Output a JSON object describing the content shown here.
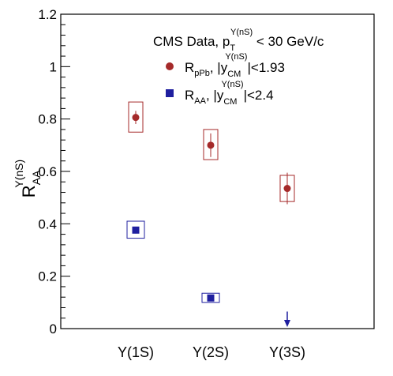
{
  "chart_data": {
    "type": "scatter",
    "title": "CMS Data, p_T^{Υ(nS)} < 30 GeV/c",
    "title_parts": {
      "prefix": "CMS Data, p",
      "sub": "T",
      "sup": "Υ(nS)",
      "suffix": " < 30 GeV/c"
    },
    "ylabel": "R_AA^Υ(nS)",
    "ylabel_parts": {
      "base": "R",
      "sub": "AA",
      "sup": "Υ(nS)"
    },
    "xlabel": "",
    "categories": [
      "Υ(1S)",
      "Υ(2S)",
      "Υ(3S)"
    ],
    "ylim": [
      0,
      1.2
    ],
    "yticks": [
      "0",
      "0.2",
      "0.4",
      "0.6",
      "0.8",
      "1",
      "1.2"
    ],
    "grid": false,
    "legend_position": "top-right",
    "series": [
      {
        "name": "R_pPb, |y_CM^Υ(nS)|<1.93",
        "legend_parts": {
          "a": "R",
          "a_sub": "pPb",
          "b": ", |y",
          "b_sub": "CM",
          "b_sup": "Υ(nS)",
          "c": "|<1.93"
        },
        "marker": "circle",
        "color": "#a52a2a",
        "points": [
          {
            "category": "Υ(1S)",
            "y": 0.806,
            "stat_err": 0.025,
            "syst": [
              0.75,
              0.865
            ]
          },
          {
            "category": "Υ(2S)",
            "y": 0.7,
            "stat_err": 0.045,
            "syst": [
              0.645,
              0.76
            ]
          },
          {
            "category": "Υ(3S)",
            "y": 0.535,
            "stat_err": 0.06,
            "syst": [
              0.485,
              0.585
            ]
          }
        ]
      },
      {
        "name": "R_AA, |y_CM^Υ(nS)|<2.4",
        "legend_parts": {
          "a": "R",
          "a_sub": "AA",
          "b": ", |y",
          "b_sub": "CM",
          "b_sup": "Υ(nS)",
          "c": "|<2.4"
        },
        "marker": "square",
        "color": "#1f1f9f",
        "points": [
          {
            "category": "Υ(1S)",
            "y": 0.376,
            "stat_err": 0.013,
            "syst": [
              0.345,
              0.41
            ]
          },
          {
            "category": "Υ(2S)",
            "y": 0.117,
            "stat_err": 0.01,
            "syst": [
              0.1,
              0.135
            ]
          },
          {
            "category": "Υ(3S)",
            "upper_limit": 0.065
          }
        ]
      }
    ]
  }
}
